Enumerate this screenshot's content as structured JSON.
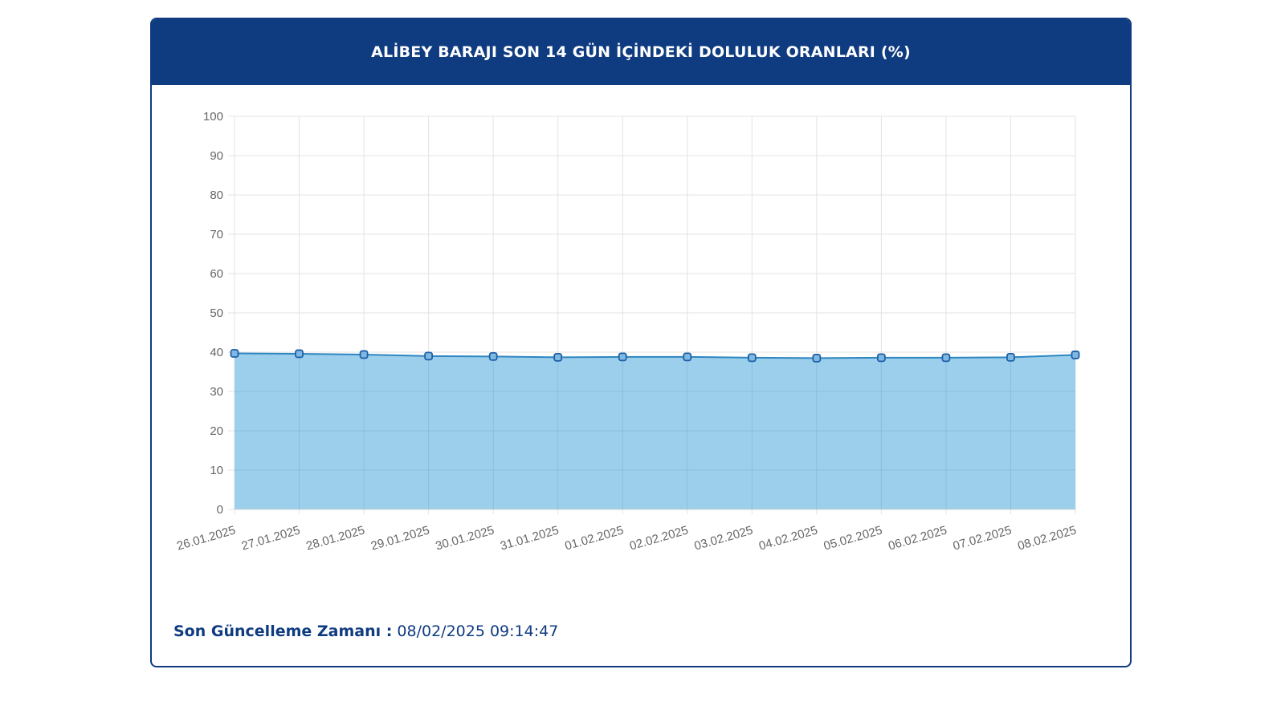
{
  "header": {
    "title": "ALİBEY BARAJI SON 14 GÜN İÇİNDEKİ DOLULUK ORANLARI (%)"
  },
  "footer": {
    "update_label": "Son Güncelleme Zamanı :",
    "update_value": "08/02/2025 09:14:47"
  },
  "colors": {
    "header_bg": "#0f3b80",
    "line": "#2e86c1",
    "fill": "#9ccfec",
    "point_fill": "#7fb8e0",
    "point_stroke": "#1f5fa8"
  },
  "chart_data": {
    "type": "area",
    "title": "ALİBEY BARAJI SON 14 GÜN İÇİNDEKİ DOLULUK ORANLARI (%)",
    "xlabel": "",
    "ylabel": "",
    "ylim": [
      0,
      100
    ],
    "yticks": [
      0,
      10,
      20,
      30,
      40,
      50,
      60,
      70,
      80,
      90,
      100
    ],
    "grid": true,
    "categories": [
      "26.01.2025",
      "27.01.2025",
      "28.01.2025",
      "29.01.2025",
      "30.01.2025",
      "31.01.2025",
      "01.02.2025",
      "02.02.2025",
      "03.02.2025",
      "04.02.2025",
      "05.02.2025",
      "06.02.2025",
      "07.02.2025",
      "08.02.2025"
    ],
    "series": [
      {
        "values": [
          39.7,
          39.6,
          39.4,
          39.0,
          38.9,
          38.7,
          38.8,
          38.8,
          38.6,
          38.5,
          38.6,
          38.6,
          38.7,
          39.3
        ]
      }
    ]
  }
}
